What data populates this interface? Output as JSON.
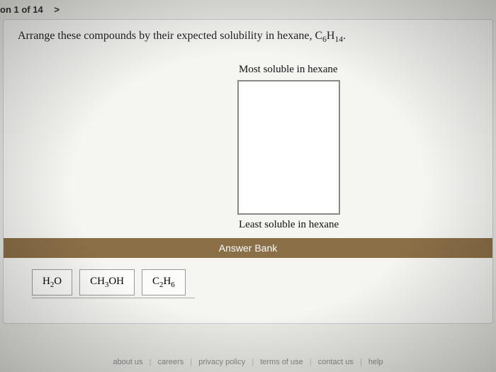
{
  "header": {
    "progress_text": "on 1 of 14",
    "nav_next_glyph": ">"
  },
  "question": {
    "prefix": "Arrange these compounds by their expected solubility in hexane, C",
    "sub1": "6",
    "mid": "H",
    "sub2": "14",
    "suffix": "."
  },
  "dropzone": {
    "top_label": "Most soluble in hexane",
    "bottom_label": "Least soluble in hexane",
    "border_color": "#888888",
    "background": "#ffffff"
  },
  "answer_bank": {
    "label": "Answer Bank",
    "bar_color": "#8b6f47",
    "compounds": [
      {
        "pre": "H",
        "s1": "2",
        "post": "O"
      },
      {
        "pre": "CH",
        "s1": "3",
        "post": "OH"
      },
      {
        "pre": "C",
        "s1": "2",
        "mid": "H",
        "s2": "6"
      }
    ]
  },
  "footer": {
    "links": [
      "about us",
      "careers",
      "privacy policy",
      "terms of use",
      "contact us",
      "help"
    ]
  },
  "colors": {
    "page_bg": "#e8e8e4",
    "content_bg": "#f5f5f2",
    "text": "#222222"
  }
}
